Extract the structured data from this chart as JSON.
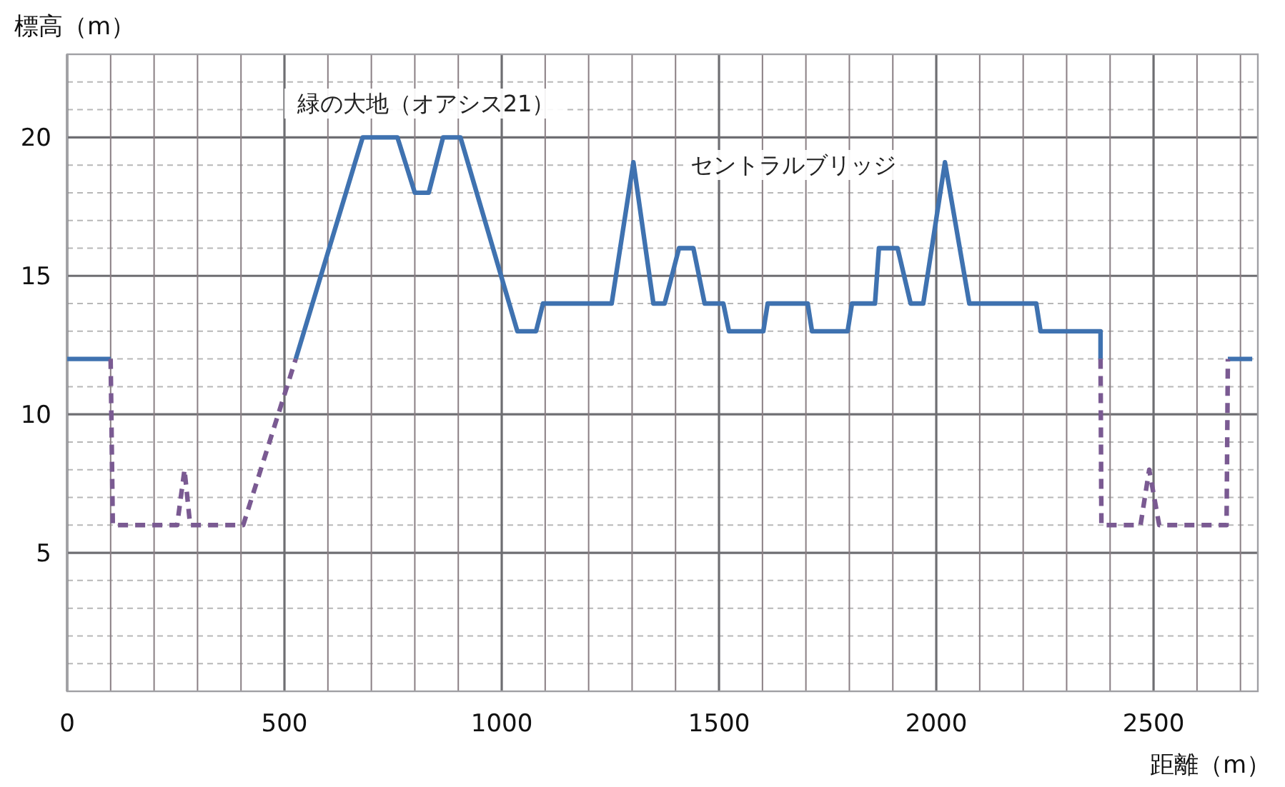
{
  "chart_data": {
    "type": "line",
    "xlabel": "距離（m）",
    "ylabel": "標高（m）",
    "annotations": [
      "緑の大地（オアシス21）",
      "セントラルブリッジ"
    ],
    "xlim": [
      0,
      2740
    ],
    "ylim": [
      0,
      23
    ],
    "xticks": [
      0,
      {
        "value": 100,
        "label": null
      },
      {
        "value": 200,
        "label": null
      },
      {
        "value": 300,
        "label": null
      },
      {
        "value": 400,
        "label": null
      },
      500,
      {
        "value": 600,
        "label": null
      },
      {
        "value": 700,
        "label": null
      },
      {
        "value": 800,
        "label": null
      },
      {
        "value": 900,
        "label": null
      },
      1000,
      {
        "value": 1100,
        "label": null
      },
      {
        "value": 1200,
        "label": null
      },
      {
        "value": 1300,
        "label": null
      },
      {
        "value": 1400,
        "label": null
      },
      1500,
      {
        "value": 1600,
        "label": null
      },
      {
        "value": 1700,
        "label": null
      },
      {
        "value": 1800,
        "label": null
      },
      {
        "value": 1900,
        "label": null
      },
      2000,
      {
        "value": 2100,
        "label": null
      },
      {
        "value": 2200,
        "label": null
      },
      {
        "value": 2300,
        "label": null
      },
      {
        "value": 2400,
        "label": null
      },
      2500,
      {
        "value": 2600,
        "label": null
      },
      {
        "value": 2700,
        "label": null
      }
    ],
    "yticks": [
      {
        "value": 1,
        "label": null
      },
      {
        "value": 2,
        "label": null
      },
      {
        "value": 3,
        "label": null
      },
      {
        "value": 4,
        "label": null
      },
      5,
      {
        "value": 6,
        "label": null
      },
      {
        "value": 7,
        "label": null
      },
      {
        "value": 8,
        "label": null
      },
      {
        "value": 9,
        "label": null
      },
      10,
      {
        "value": 11,
        "label": null
      },
      {
        "value": 12,
        "label": null
      },
      {
        "value": 13,
        "label": null
      },
      {
        "value": 14,
        "label": null
      },
      15,
      {
        "value": 16,
        "label": null
      },
      {
        "value": 17,
        "label": null
      },
      {
        "value": 18,
        "label": null
      },
      {
        "value": 19,
        "label": null
      },
      20,
      {
        "value": 21,
        "label": null
      },
      {
        "value": 22,
        "label": null
      }
    ],
    "grid": true,
    "marker": "none",
    "series": [
      {
        "color": "#3f72b0",
        "line_style": "solid",
        "x": [
          0,
          100,
          110,
          526,
          680,
          760,
          800,
          832,
          865,
          905,
          1036,
          1079,
          1095,
          1253,
          1303,
          1349,
          1375,
          1408,
          1441,
          1467,
          1510,
          1523,
          1602,
          1612,
          1704,
          1714,
          1796,
          1806,
          1859,
          1868,
          1911,
          1941,
          1970,
          2020,
          2076,
          2230,
          2240,
          2378,
          2378,
          2400,
          2671,
          2727
        ],
        "values": [
          12,
          12,
          null,
          12,
          20,
          20,
          18,
          18,
          20,
          20,
          13,
          13,
          14,
          14,
          19.1,
          14,
          14,
          16,
          16,
          14,
          14,
          13,
          13,
          14,
          14,
          13,
          13,
          14,
          14,
          16,
          16,
          14,
          14,
          19.1,
          14,
          14,
          13,
          13,
          12,
          null,
          12,
          12
        ]
      },
      {
        "color": "#7a5a92",
        "line_style": "dashed",
        "x": [
          100,
          105,
          253,
          270,
          283,
          405,
          526,
          null,
          2378,
          2380,
          2470,
          2490,
          2513,
          2668,
          2671
        ],
        "values": [
          12,
          6,
          6,
          8,
          6,
          6,
          12,
          null,
          12,
          6,
          6,
          8,
          6,
          6,
          12
        ]
      }
    ]
  }
}
